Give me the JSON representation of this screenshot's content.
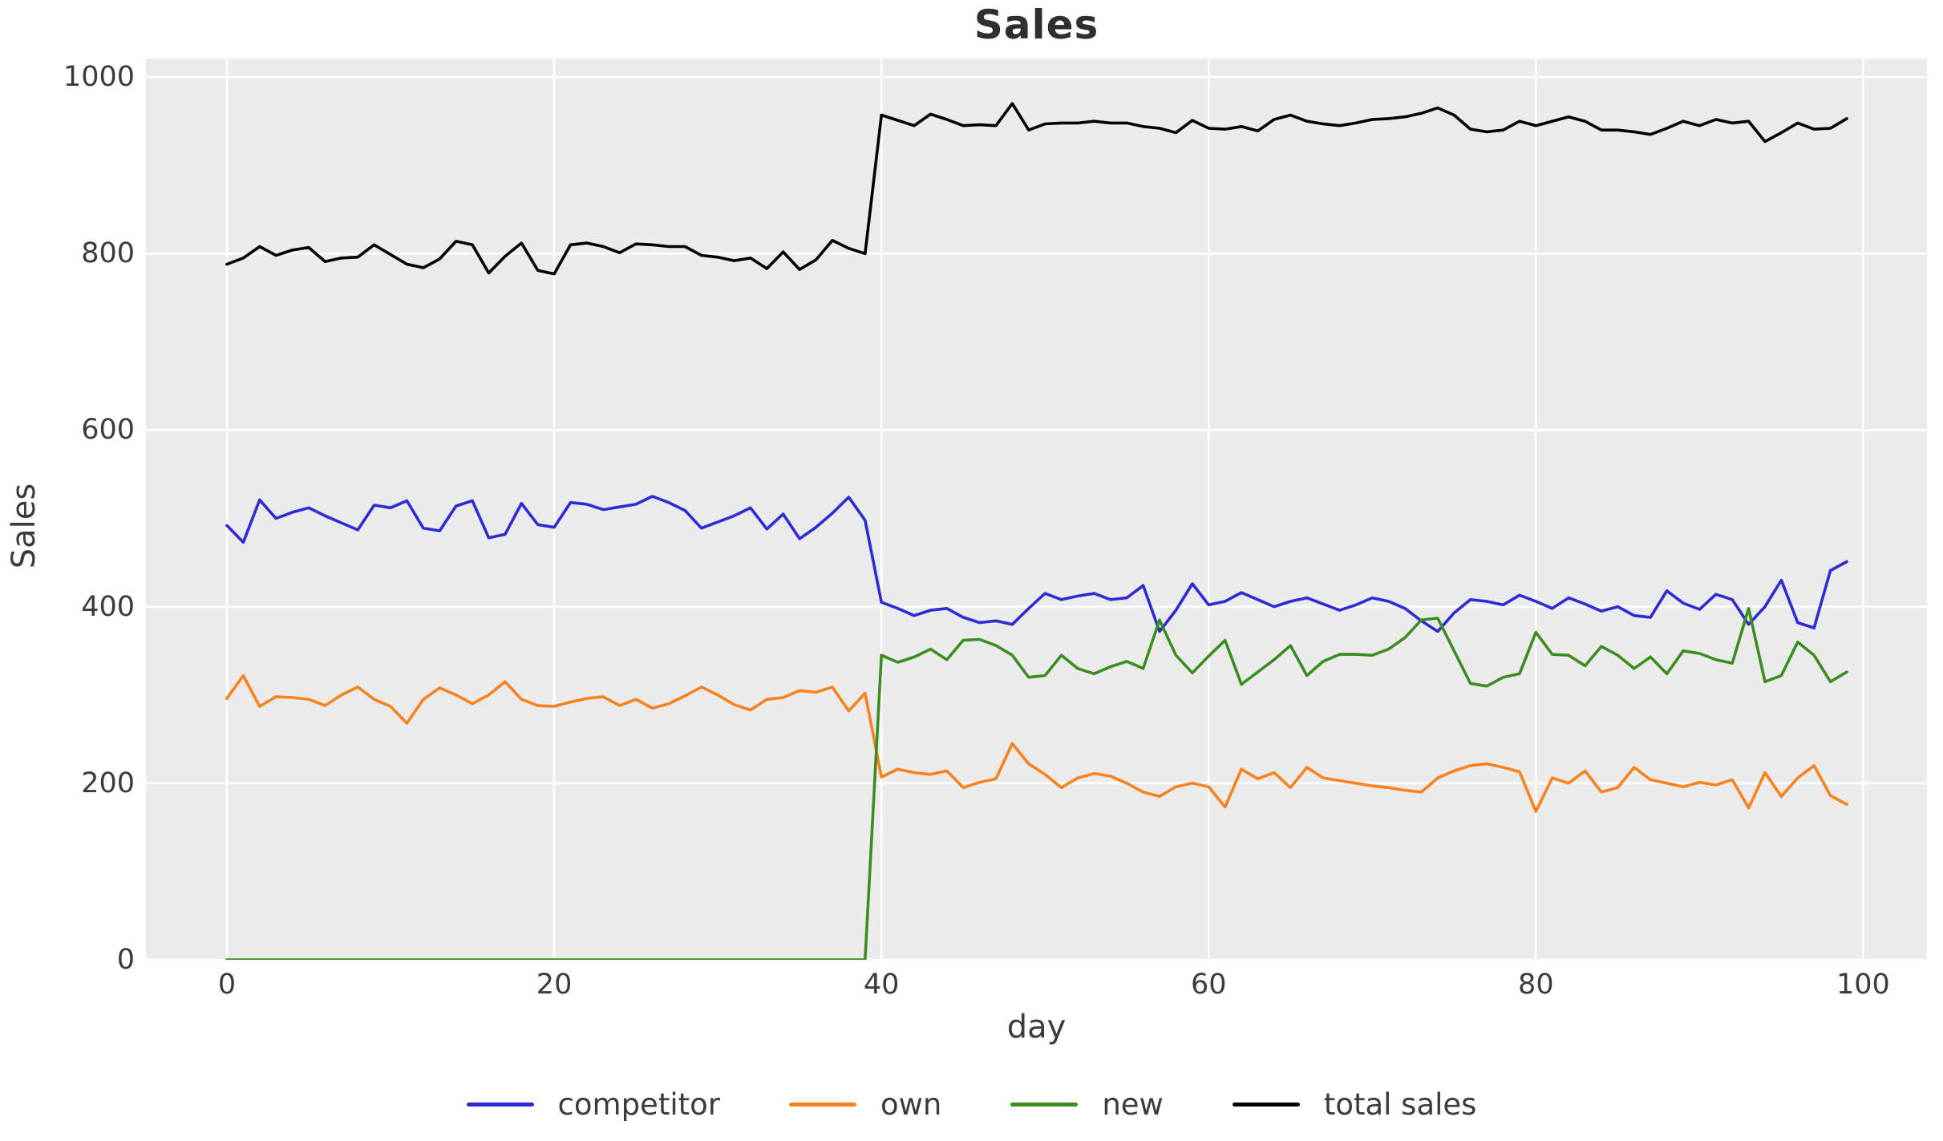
{
  "figure": {
    "title": "Sales"
  },
  "axes": {
    "xlabel": "day",
    "ylabel": "Sales",
    "x_ticks": [
      0,
      20,
      40,
      60,
      80,
      100
    ],
    "y_ticks": [
      0,
      200,
      400,
      600,
      800,
      1000
    ]
  },
  "style": {
    "plot_bg": "#ebebeb",
    "grid_color": "#ffffff",
    "text_color": "#3b3b3b",
    "title_color": "#2f2f2f"
  },
  "legend": {
    "items": [
      {
        "label": "competitor",
        "color": "#2d2ad6"
      },
      {
        "label": "own",
        "color": "#f8821d"
      },
      {
        "label": "new",
        "color": "#3a8e20"
      },
      {
        "label": "total sales",
        "color": "#000000"
      }
    ]
  },
  "chart_data": {
    "type": "line",
    "title": "Sales",
    "xlabel": "day",
    "ylabel": "Sales",
    "xlim": [
      -4.95,
      103.9
    ],
    "ylim": [
      0,
      1021
    ],
    "grid": true,
    "legend_position": "bottom",
    "x": [
      0,
      1,
      2,
      3,
      4,
      5,
      6,
      7,
      8,
      9,
      10,
      11,
      12,
      13,
      14,
      15,
      16,
      17,
      18,
      19,
      20,
      21,
      22,
      23,
      24,
      25,
      26,
      27,
      28,
      29,
      30,
      31,
      32,
      33,
      34,
      35,
      36,
      37,
      38,
      39,
      40,
      41,
      42,
      43,
      44,
      45,
      46,
      47,
      48,
      49,
      50,
      51,
      52,
      53,
      54,
      55,
      56,
      57,
      58,
      59,
      60,
      61,
      62,
      63,
      64,
      65,
      66,
      67,
      68,
      69,
      70,
      71,
      72,
      73,
      74,
      75,
      76,
      77,
      78,
      79,
      80,
      81,
      82,
      83,
      84,
      85,
      86,
      87,
      88,
      89,
      90,
      91,
      92,
      93,
      94,
      95,
      96,
      97,
      98,
      99
    ],
    "series": [
      {
        "name": "competitor",
        "color": "#2d2ad6",
        "values": [
          492,
          473,
          521,
          500,
          507,
          512,
          503,
          495,
          487,
          515,
          512,
          520,
          489,
          486,
          514,
          520,
          478,
          482,
          517,
          493,
          490,
          518,
          516,
          510,
          513,
          516,
          525,
          518,
          509,
          489,
          496,
          503,
          512,
          488,
          505,
          477,
          490,
          506,
          524,
          498,
          405,
          398,
          390,
          396,
          398,
          388,
          382,
          384,
          380,
          398,
          415,
          408,
          412,
          415,
          408,
          410,
          424,
          372,
          396,
          426,
          402,
          406,
          416,
          408,
          400,
          406,
          410,
          403,
          396,
          402,
          410,
          406,
          398,
          384,
          372,
          393,
          408,
          406,
          402,
          413,
          406,
          398,
          410,
          403,
          395,
          400,
          390,
          388,
          418,
          404,
          397,
          414,
          408,
          380,
          400,
          430,
          382,
          376,
          441,
          451
        ]
      },
      {
        "name": "own",
        "color": "#f8821d",
        "values": [
          296,
          322,
          287,
          298,
          297,
          295,
          288,
          300,
          309,
          295,
          287,
          268,
          295,
          308,
          300,
          290,
          300,
          315,
          295,
          288,
          287,
          292,
          296,
          298,
          288,
          295,
          285,
          290,
          299,
          309,
          300,
          289,
          283,
          295,
          297,
          305,
          303,
          309,
          282,
          302,
          207,
          216,
          212,
          210,
          214,
          195,
          201,
          205,
          245,
          222,
          210,
          195,
          206,
          211,
          208,
          200,
          190,
          185,
          196,
          200,
          196,
          173,
          216,
          205,
          212,
          195,
          218,
          206,
          203,
          200,
          197,
          195,
          192,
          190,
          206,
          214,
          220,
          222,
          218,
          213,
          168,
          206,
          200,
          214,
          190,
          195,
          218,
          204,
          200,
          196,
          201,
          198,
          204,
          172,
          212,
          185,
          206,
          220,
          186,
          176
        ]
      },
      {
        "name": "new",
        "color": "#3a8e20",
        "values": [
          0,
          0,
          0,
          0,
          0,
          0,
          0,
          0,
          0,
          0,
          0,
          0,
          0,
          0,
          0,
          0,
          0,
          0,
          0,
          0,
          0,
          0,
          0,
          0,
          0,
          0,
          0,
          0,
          0,
          0,
          0,
          0,
          0,
          0,
          0,
          0,
          0,
          0,
          0,
          0,
          345,
          337,
          343,
          352,
          340,
          362,
          363,
          356,
          345,
          320,
          322,
          345,
          330,
          324,
          332,
          338,
          330,
          385,
          345,
          325,
          344,
          362,
          312,
          326,
          340,
          356,
          322,
          338,
          346,
          346,
          345,
          352,
          365,
          385,
          387,
          350,
          313,
          310,
          320,
          324,
          371,
          346,
          345,
          333,
          355,
          345,
          330,
          343,
          324,
          350,
          347,
          340,
          336,
          398,
          315,
          322,
          360,
          345,
          315,
          326
        ]
      },
      {
        "name": "total sales",
        "color": "#000000",
        "values": [
          788,
          795,
          808,
          798,
          804,
          807,
          791,
          795,
          796,
          810,
          799,
          788,
          784,
          794,
          814,
          810,
          778,
          797,
          812,
          781,
          777,
          810,
          812,
          808,
          801,
          811,
          810,
          808,
          808,
          798,
          796,
          792,
          795,
          783,
          802,
          782,
          793,
          815,
          806,
          800,
          957,
          951,
          945,
          958,
          952,
          945,
          946,
          945,
          970,
          940,
          947,
          948,
          948,
          950,
          948,
          948,
          944,
          942,
          937,
          951,
          942,
          941,
          944,
          939,
          952,
          957,
          950,
          947,
          945,
          948,
          952,
          953,
          955,
          959,
          965,
          957,
          941,
          938,
          940,
          950,
          945,
          950,
          955,
          950,
          940,
          940,
          938,
          935,
          942,
          950,
          945,
          952,
          948,
          950,
          927,
          937,
          948,
          941,
          942,
          953
        ]
      }
    ]
  }
}
